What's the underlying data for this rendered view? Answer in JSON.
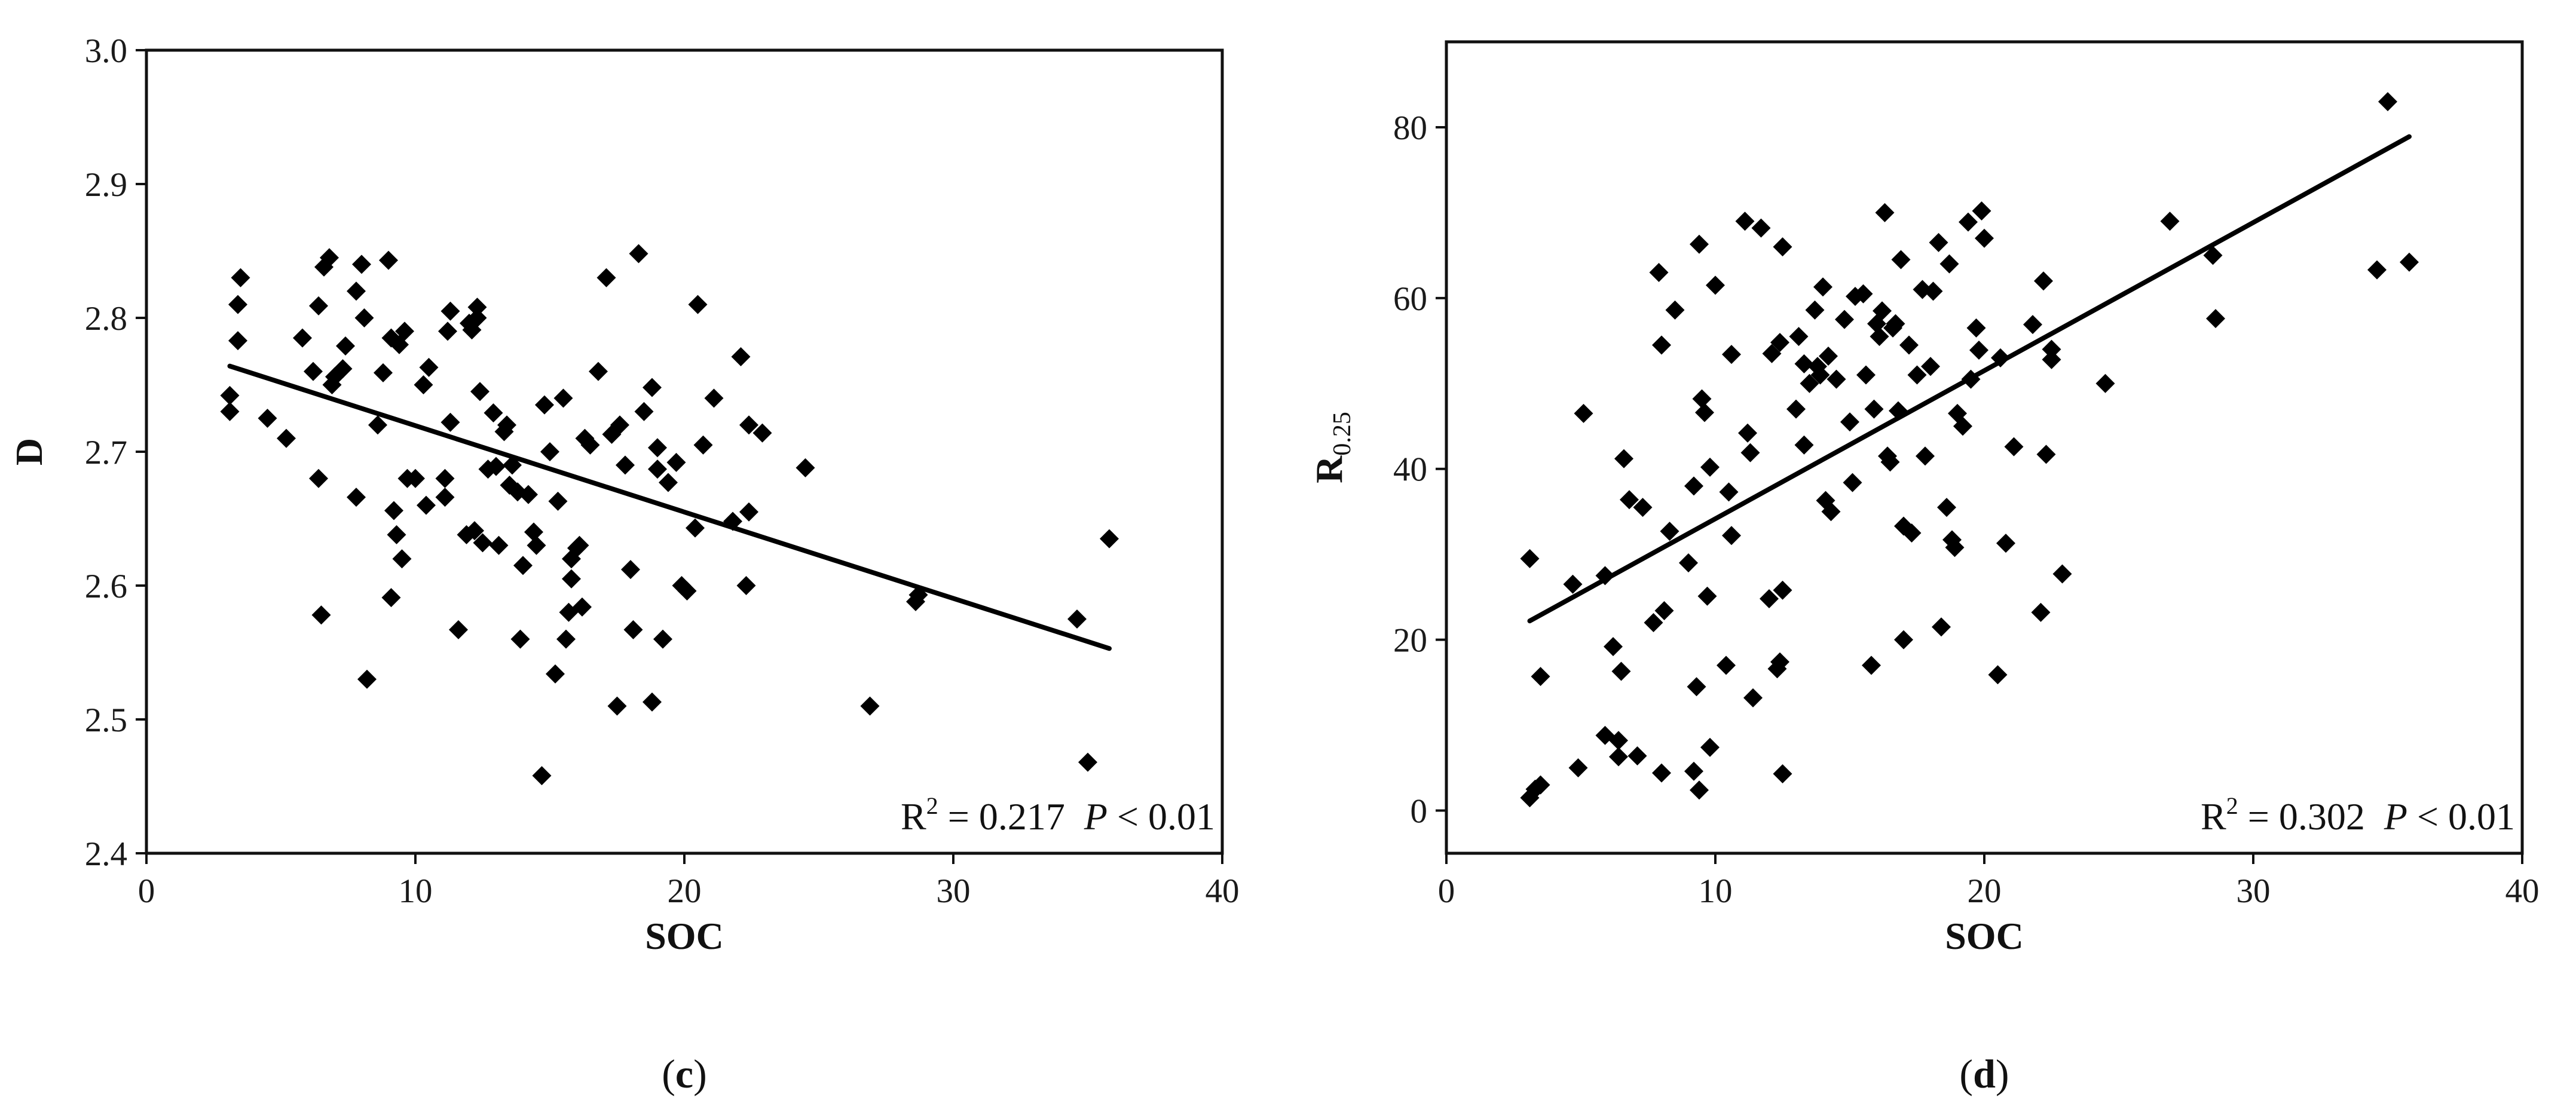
{
  "chart_data": [
    {
      "type": "scatter",
      "panel_label": "(c)",
      "panel_letter": "c",
      "xlabel": "SOC",
      "ylabel": "D",
      "xlim": [
        0,
        40
      ],
      "ylim": [
        2.4,
        3.0
      ],
      "xticks": [
        0,
        10,
        20,
        30,
        40
      ],
      "yticks": [
        2.4,
        2.5,
        2.6,
        2.7,
        2.8,
        2.9,
        3.0
      ],
      "ytick_decimals": 1,
      "grid": false,
      "annotation": {
        "r2_label": "R",
        "r2_sup": "2",
        "r2_value": " = 0.217",
        "p_label": "P",
        "p_value": " < 0.01"
      },
      "trendline": {
        "x": [
          3.1,
          35.8
        ],
        "y": [
          2.764,
          2.553
        ]
      },
      "points": [
        [
          3.1,
          2.73
        ],
        [
          3.1,
          2.742
        ],
        [
          3.4,
          2.81
        ],
        [
          3.4,
          2.783
        ],
        [
          3.5,
          2.83
        ],
        [
          4.5,
          2.725
        ],
        [
          5.2,
          2.71
        ],
        [
          5.8,
          2.785
        ],
        [
          6.2,
          2.76
        ],
        [
          6.4,
          2.809
        ],
        [
          6.4,
          2.68
        ],
        [
          6.5,
          2.578
        ],
        [
          6.6,
          2.838
        ],
        [
          6.8,
          2.845
        ],
        [
          6.9,
          2.75
        ],
        [
          7.0,
          2.756
        ],
        [
          7.3,
          2.762
        ],
        [
          7.4,
          2.779
        ],
        [
          7.8,
          2.82
        ],
        [
          7.8,
          2.666
        ],
        [
          8.0,
          2.84
        ],
        [
          8.1,
          2.8
        ],
        [
          8.2,
          2.53
        ],
        [
          8.6,
          2.72
        ],
        [
          8.8,
          2.759
        ],
        [
          9.0,
          2.843
        ],
        [
          9.1,
          2.785
        ],
        [
          9.1,
          2.591
        ],
        [
          9.2,
          2.656
        ],
        [
          9.3,
          2.638
        ],
        [
          9.4,
          2.78
        ],
        [
          9.5,
          2.62
        ],
        [
          9.6,
          2.79
        ],
        [
          9.7,
          2.68
        ],
        [
          10.3,
          2.75
        ],
        [
          10.4,
          2.66
        ],
        [
          10.5,
          2.763
        ],
        [
          11.1,
          2.666
        ],
        [
          11.1,
          2.68
        ],
        [
          11.2,
          2.79
        ],
        [
          11.3,
          2.805
        ],
        [
          11.3,
          2.722
        ],
        [
          11.6,
          2.567
        ],
        [
          11.9,
          2.638
        ],
        [
          12.0,
          2.796
        ],
        [
          12.1,
          2.791
        ],
        [
          12.2,
          2.641
        ],
        [
          12.3,
          2.808
        ],
        [
          12.3,
          2.8
        ],
        [
          12.4,
          2.745
        ],
        [
          12.5,
          2.632
        ],
        [
          12.9,
          2.729
        ],
        [
          13.0,
          2.689
        ],
        [
          13.1,
          2.63
        ],
        [
          13.3,
          2.715
        ],
        [
          13.4,
          2.72
        ],
        [
          13.5,
          2.675
        ],
        [
          13.6,
          2.69
        ],
        [
          13.8,
          2.67
        ],
        [
          13.9,
          2.56
        ],
        [
          14.0,
          2.615
        ],
        [
          14.2,
          2.668
        ],
        [
          14.4,
          2.64
        ],
        [
          14.5,
          2.63
        ],
        [
          14.7,
          2.458
        ],
        [
          14.8,
          2.735
        ],
        [
          15.0,
          2.7
        ],
        [
          15.2,
          2.534
        ],
        [
          15.5,
          2.74
        ],
        [
          15.6,
          2.56
        ],
        [
          15.7,
          2.58
        ],
        [
          15.8,
          2.62
        ],
        [
          15.8,
          2.605
        ],
        [
          16.0,
          2.628
        ],
        [
          16.1,
          2.63
        ],
        [
          16.2,
          2.584
        ],
        [
          16.3,
          2.71
        ],
        [
          16.5,
          2.705
        ],
        [
          16.8,
          2.76
        ],
        [
          17.1,
          2.83
        ],
        [
          17.3,
          2.713
        ],
        [
          17.5,
          2.51
        ],
        [
          17.6,
          2.72
        ],
        [
          17.8,
          2.69
        ],
        [
          18.0,
          2.612
        ],
        [
          18.1,
          2.567
        ],
        [
          18.3,
          2.848
        ],
        [
          18.5,
          2.73
        ],
        [
          18.8,
          2.513
        ],
        [
          18.8,
          2.748
        ],
        [
          19.0,
          2.703
        ],
        [
          19.0,
          2.687
        ],
        [
          19.2,
          2.56
        ],
        [
          19.4,
          2.677
        ],
        [
          19.7,
          2.692
        ],
        [
          19.9,
          2.6
        ],
        [
          20.1,
          2.596
        ],
        [
          20.4,
          2.643
        ],
        [
          20.5,
          2.81
        ],
        [
          20.7,
          2.705
        ],
        [
          21.1,
          2.74
        ],
        [
          21.8,
          2.648
        ],
        [
          22.1,
          2.771
        ],
        [
          22.3,
          2.6
        ],
        [
          22.4,
          2.655
        ],
        [
          22.4,
          2.72
        ],
        [
          22.9,
          2.714
        ],
        [
          24.5,
          2.688
        ],
        [
          26.9,
          2.51
        ],
        [
          28.6,
          2.588
        ],
        [
          28.7,
          2.593
        ],
        [
          34.6,
          2.575
        ],
        [
          35.0,
          2.468
        ],
        [
          35.8,
          2.635
        ],
        [
          15.3,
          2.663
        ],
        [
          10.0,
          2.68
        ],
        [
          12.7,
          2.687
        ]
      ]
    },
    {
      "type": "scatter",
      "panel_label": "(d)",
      "panel_letter": "d",
      "xlabel": "SOC",
      "ylabel": "R",
      "ylabel_sub": "0.25",
      "xlim": [
        0,
        40
      ],
      "ylim": [
        -5,
        90
      ],
      "xticks": [
        0,
        10,
        20,
        30,
        40
      ],
      "yticks": [
        0,
        20,
        40,
        60,
        80
      ],
      "ytick_decimals": 0,
      "grid": false,
      "annotation": {
        "r2_label": "R",
        "r2_sup": "2",
        "r2_value": " = 0.302",
        "p_label": "P",
        "p_value": " < 0.01"
      },
      "trendline": {
        "x": [
          3.1,
          35.8
        ],
        "y": [
          22.2,
          78.9
        ]
      },
      "points": [
        [
          3.1,
          29.5
        ],
        [
          3.1,
          1.5
        ],
        [
          3.3,
          2.5
        ],
        [
          3.5,
          3.0
        ],
        [
          3.5,
          15.7
        ],
        [
          4.7,
          26.5
        ],
        [
          4.9,
          5.0
        ],
        [
          5.1,
          46.5
        ],
        [
          5.9,
          27.5
        ],
        [
          5.9,
          8.8
        ],
        [
          6.2,
          19.2
        ],
        [
          6.4,
          6.3
        ],
        [
          6.4,
          8.2
        ],
        [
          6.5,
          16.3
        ],
        [
          6.6,
          41.2
        ],
        [
          6.8,
          36.4
        ],
        [
          7.1,
          6.4
        ],
        [
          7.3,
          35.5
        ],
        [
          7.7,
          22.0
        ],
        [
          7.9,
          63.0
        ],
        [
          8.0,
          54.5
        ],
        [
          8.0,
          4.4
        ],
        [
          8.1,
          23.4
        ],
        [
          8.3,
          32.7
        ],
        [
          8.5,
          58.6
        ],
        [
          9.0,
          29.0
        ],
        [
          9.2,
          38.0
        ],
        [
          9.2,
          4.6
        ],
        [
          9.3,
          14.5
        ],
        [
          9.4,
          2.4
        ],
        [
          9.4,
          66.3
        ],
        [
          9.5,
          48.2
        ],
        [
          9.6,
          46.6
        ],
        [
          9.7,
          25.1
        ],
        [
          9.8,
          7.4
        ],
        [
          9.8,
          40.2
        ],
        [
          10.0,
          61.5
        ],
        [
          10.4,
          17.0
        ],
        [
          10.5,
          37.3
        ],
        [
          10.6,
          53.4
        ],
        [
          10.6,
          32.2
        ],
        [
          11.1,
          69.0
        ],
        [
          11.2,
          44.2
        ],
        [
          11.3,
          41.9
        ],
        [
          11.4,
          13.2
        ],
        [
          11.7,
          68.2
        ],
        [
          12.0,
          24.8
        ],
        [
          12.1,
          53.5
        ],
        [
          12.3,
          16.6
        ],
        [
          12.4,
          54.8
        ],
        [
          12.4,
          17.4
        ],
        [
          12.5,
          66.0
        ],
        [
          12.5,
          4.3
        ],
        [
          12.5,
          25.8
        ],
        [
          13.0,
          47.0
        ],
        [
          13.1,
          55.5
        ],
        [
          13.3,
          52.3
        ],
        [
          13.3,
          42.8
        ],
        [
          13.5,
          50.0
        ],
        [
          13.7,
          58.6
        ],
        [
          13.8,
          52.0
        ],
        [
          13.9,
          51.0
        ],
        [
          14.0,
          61.3
        ],
        [
          14.1,
          36.3
        ],
        [
          14.2,
          53.2
        ],
        [
          14.3,
          35.0
        ],
        [
          14.5,
          50.5
        ],
        [
          14.8,
          57.5
        ],
        [
          15.0,
          45.5
        ],
        [
          15.1,
          38.4
        ],
        [
          15.2,
          60.2
        ],
        [
          15.5,
          60.5
        ],
        [
          15.6,
          51.0
        ],
        [
          15.8,
          17.0
        ],
        [
          15.9,
          47.0
        ],
        [
          16.0,
          57.0
        ],
        [
          16.1,
          55.5
        ],
        [
          16.2,
          58.5
        ],
        [
          16.3,
          70.0
        ],
        [
          16.4,
          41.5
        ],
        [
          16.5,
          40.8
        ],
        [
          16.6,
          56.5
        ],
        [
          16.7,
          57.0
        ],
        [
          16.8,
          46.8
        ],
        [
          16.9,
          64.5
        ],
        [
          17.0,
          20.0
        ],
        [
          17.0,
          33.3
        ],
        [
          17.2,
          54.5
        ],
        [
          17.3,
          32.5
        ],
        [
          17.5,
          51.0
        ],
        [
          17.7,
          61.0
        ],
        [
          17.8,
          41.5
        ],
        [
          18.0,
          52.0
        ],
        [
          18.1,
          60.8
        ],
        [
          18.3,
          66.5
        ],
        [
          18.4,
          21.5
        ],
        [
          18.6,
          35.5
        ],
        [
          18.7,
          64.0
        ],
        [
          18.8,
          31.7
        ],
        [
          18.9,
          30.8
        ],
        [
          19.0,
          46.5
        ],
        [
          19.2,
          45.0
        ],
        [
          19.4,
          68.9
        ],
        [
          19.5,
          50.5
        ],
        [
          19.7,
          56.5
        ],
        [
          19.8,
          53.9
        ],
        [
          19.9,
          70.2
        ],
        [
          20.0,
          67.0
        ],
        [
          20.5,
          15.9
        ],
        [
          20.6,
          53.0
        ],
        [
          20.8,
          31.3
        ],
        [
          21.1,
          42.6
        ],
        [
          21.8,
          56.9
        ],
        [
          22.1,
          23.2
        ],
        [
          22.2,
          62.0
        ],
        [
          22.3,
          41.7
        ],
        [
          22.5,
          52.8
        ],
        [
          22.5,
          54.0
        ],
        [
          22.9,
          27.7
        ],
        [
          24.5,
          50.0
        ],
        [
          26.9,
          69.0
        ],
        [
          28.5,
          65.0
        ],
        [
          28.6,
          57.6
        ],
        [
          34.6,
          63.3
        ],
        [
          35.0,
          83.0
        ],
        [
          35.8,
          64.2
        ]
      ]
    }
  ]
}
